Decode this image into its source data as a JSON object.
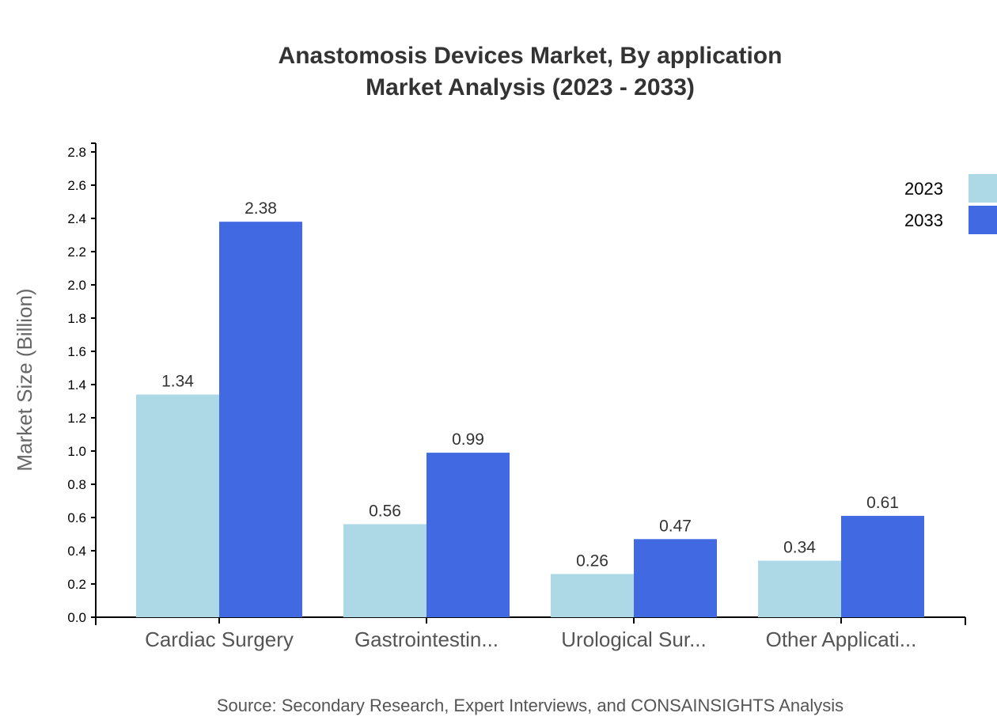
{
  "chart_data": {
    "type": "bar",
    "title": "Anastomosis Devices Market, By application",
    "subtitle": "Market Analysis (2023 - 2033)",
    "ylabel": "Market Size (Billion)",
    "xlabel": "",
    "ylim": [
      0,
      2.8
    ],
    "yticks": [
      "0.0",
      "0.2",
      "0.4",
      "0.6",
      "0.8",
      "1.0",
      "1.2",
      "1.4",
      "1.6",
      "1.8",
      "2.0",
      "2.2",
      "2.4",
      "2.6",
      "2.8"
    ],
    "categories": [
      "Cardiac Surgery",
      "Gastrointestin...",
      "Urological Sur...",
      "Other Applicati..."
    ],
    "series": [
      {
        "name": "2023",
        "color": "#ADD8E6",
        "values": [
          1.34,
          0.56,
          0.26,
          0.34
        ]
      },
      {
        "name": "2033",
        "color": "#4169E1",
        "values": [
          2.38,
          0.99,
          0.47,
          0.61
        ]
      }
    ],
    "legend": "top-right",
    "grid": false,
    "source": "Source: Secondary Research, Expert Interviews, and CONSAINSIGHTS Analysis"
  }
}
